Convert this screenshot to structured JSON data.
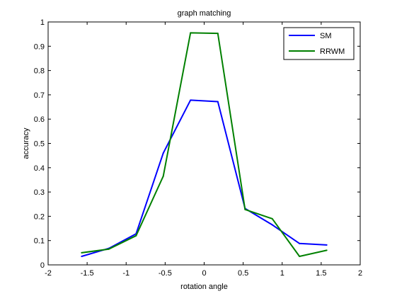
{
  "chart_data": {
    "type": "line",
    "title": "graph matching",
    "xlabel": "rotation angle",
    "ylabel": "accuracy",
    "xlim": [
      -2,
      2
    ],
    "ylim": [
      0,
      1
    ],
    "xticks": [
      "-2",
      "-1.5",
      "-1",
      "-0.5",
      "0",
      "0.5",
      "1",
      "1.5",
      "2"
    ],
    "yticks": [
      "0",
      "0.1",
      "0.2",
      "0.3",
      "0.4",
      "0.5",
      "0.6",
      "0.7",
      "0.8",
      "0.9",
      "1"
    ],
    "grid": false,
    "legend_position": "top-right",
    "x": [
      -1.571,
      -1.222,
      -0.873,
      -0.524,
      -0.175,
      0.175,
      0.524,
      0.873,
      1.222,
      1.571
    ],
    "series": [
      {
        "name": "SM",
        "color": "#0000ff",
        "values": [
          0.035,
          0.068,
          0.128,
          0.46,
          0.678,
          0.672,
          0.232,
          0.165,
          0.088,
          0.082
        ]
      },
      {
        "name": "RRWM",
        "color": "#008000",
        "values": [
          0.05,
          0.065,
          0.12,
          0.365,
          0.955,
          0.953,
          0.228,
          0.19,
          0.035,
          0.06
        ]
      }
    ]
  }
}
